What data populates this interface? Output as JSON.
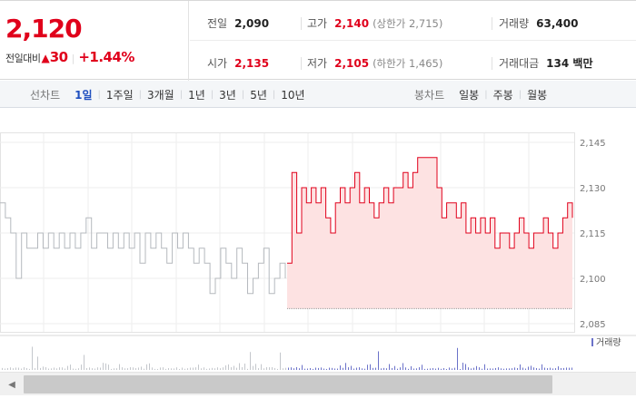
{
  "summary": {
    "price": "2,120",
    "change_label": "전일대비",
    "change_arrow": "▲",
    "change": "30",
    "change_pct": "+1.44%",
    "prev_close_label": "전일",
    "prev_close": "2,090",
    "high_label": "고가",
    "high": "2,140",
    "upper_limit": "(상한가 2,715)",
    "volume_label": "거래량",
    "volume": "63,400",
    "open_label": "시가",
    "open": "2,135",
    "low_label": "저가",
    "low": "2,105",
    "lower_limit": "(하한가 1,465)",
    "amount_label": "거래대금",
    "amount": "134 백만"
  },
  "line_periods": {
    "label": "선차트",
    "items": [
      "1일",
      "1주일",
      "3개월",
      "1년",
      "3년",
      "5년",
      "10년"
    ],
    "selected": "1일"
  },
  "candle_periods": {
    "label": "봉차트",
    "items": [
      "일봉",
      "주봉",
      "월봉"
    ]
  },
  "chart_data": {
    "type": "line",
    "yticks": [
      "2,145",
      "2,130",
      "2,115",
      "2,100",
      "2,085"
    ],
    "ylim": [
      2085,
      2145
    ],
    "baseline": 2090,
    "volume_legend": "거래량",
    "colors": {
      "up": "#e0001b",
      "prev_day": "#b5b9be",
      "fill": "#fde2e2",
      "volume": "#6b72c9"
    },
    "series": [
      {
        "values": [
          2125,
          2120,
          2115,
          2100,
          2115,
          2110,
          2110,
          2115,
          2110,
          2115,
          2110,
          2115,
          2110,
          2115,
          2110,
          2115,
          2120,
          2110,
          2115,
          2115,
          2110,
          2115,
          2110,
          2115,
          2110,
          2115,
          2105,
          2115,
          2110,
          2115,
          2110,
          2105,
          2115,
          2110,
          2115,
          2110,
          2105,
          2110,
          2105,
          2095,
          2100,
          2110,
          2105,
          2100,
          2110,
          2105,
          2095,
          2100,
          2105,
          2110,
          2095,
          2100,
          2105,
          2100
        ]
      },
      {
        "values": [
          2105,
          2135,
          2115,
          2130,
          2125,
          2130,
          2125,
          2130,
          2120,
          2115,
          2125,
          2130,
          2125,
          2130,
          2135,
          2125,
          2130,
          2125,
          2120,
          2125,
          2130,
          2125,
          2130,
          2130,
          2135,
          2130,
          2135,
          2140,
          2140,
          2140,
          2140,
          2130,
          2120,
          2125,
          2125,
          2120,
          2125,
          2115,
          2120,
          2115,
          2120,
          2115,
          2120,
          2110,
          2115,
          2115,
          2110,
          2115,
          2120,
          2115,
          2110,
          2115,
          2115,
          2120,
          2115,
          2110,
          2115,
          2120,
          2125,
          2120
        ]
      }
    ]
  }
}
